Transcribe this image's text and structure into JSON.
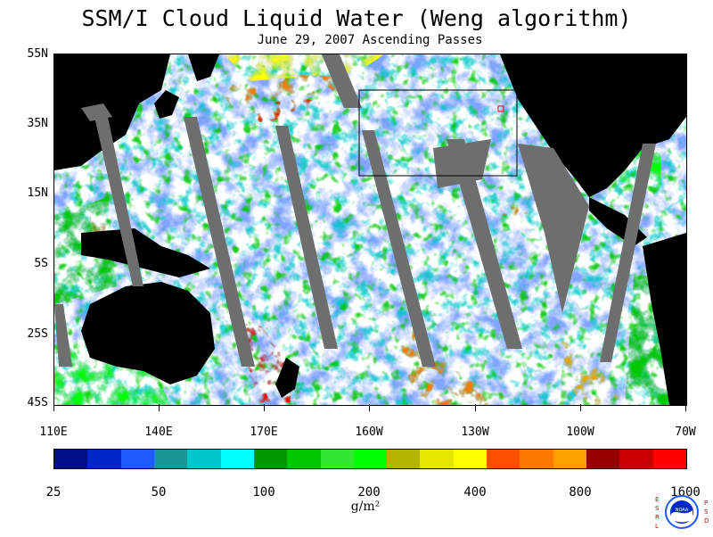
{
  "header": {
    "title": "SSM/I Cloud Liquid Water (Weng algorithm)",
    "subtitle": "June 29, 2007  Ascending Passes"
  },
  "axes": {
    "lat_labels": [
      "55N",
      "35N",
      "15N",
      "5S",
      "25S",
      "45S"
    ],
    "lon_labels": [
      "110E",
      "140E",
      "170E",
      "160W",
      "130W",
      "100W",
      "70W"
    ]
  },
  "colorbar": {
    "labels": [
      "25",
      "50",
      "100",
      "200",
      "400",
      "800",
      "1600"
    ],
    "units": "g/m²",
    "colors": [
      "#000f88",
      "#0028c8",
      "#1e5aff",
      "#1a9696",
      "#00c8c8",
      "#00ffff",
      "#009600",
      "#00c800",
      "#32e632",
      "#00ff00",
      "#b4b400",
      "#e6e600",
      "#ffff00",
      "#ff5000",
      "#ff7800",
      "#ffa000",
      "#960000",
      "#c80000",
      "#ff0000"
    ]
  },
  "logo": {
    "name": "NOAA",
    "left_letters": "ESRL",
    "right_letters": "PSD"
  },
  "colors": {
    "land": "#000000",
    "no_data": "#6e6e6e",
    "background": "#ffffff"
  }
}
